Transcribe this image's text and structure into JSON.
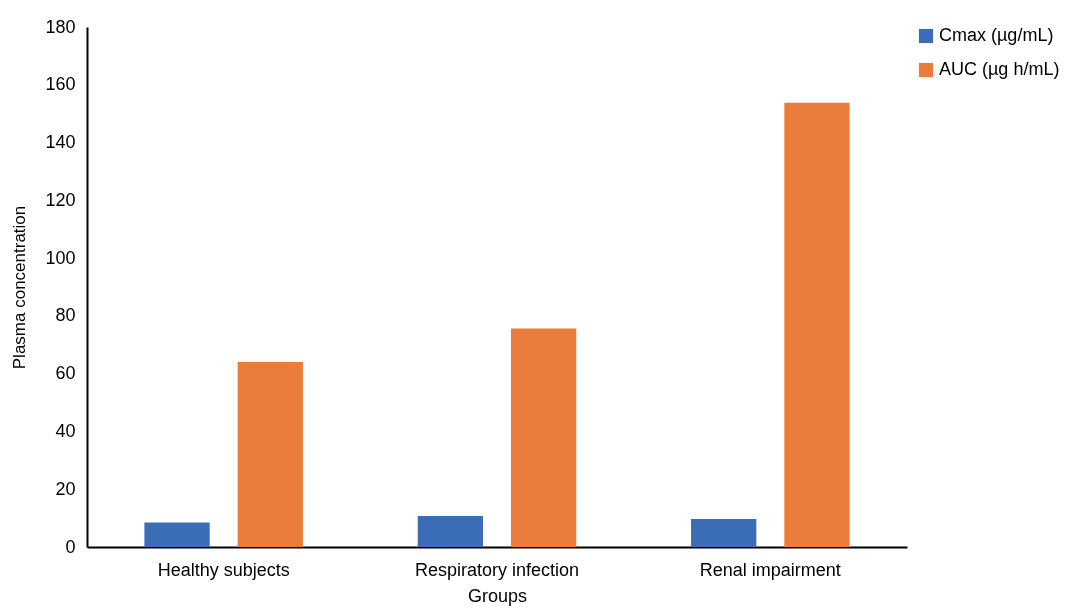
{
  "chart_data": {
    "type": "bar",
    "xlabel": "Groups",
    "ylabel": "Plasma concentration",
    "categories": [
      "Healthy subjects",
      "Respiratory infection",
      "Renal impairment"
    ],
    "series": [
      {
        "name": "Cmax (µg/mL)",
        "color": "#3a6db5",
        "values": [
          8.5,
          10.7,
          9.7
        ]
      },
      {
        "name": "AUC (µg h/mL)",
        "color": "#ea7d3b",
        "values": [
          64,
          75.6,
          153.8
        ]
      }
    ],
    "ylim": [
      0,
      180
    ],
    "yticks": [
      0,
      20,
      40,
      60,
      80,
      100,
      120,
      140,
      160,
      180
    ],
    "grid": false,
    "legend": "right"
  }
}
